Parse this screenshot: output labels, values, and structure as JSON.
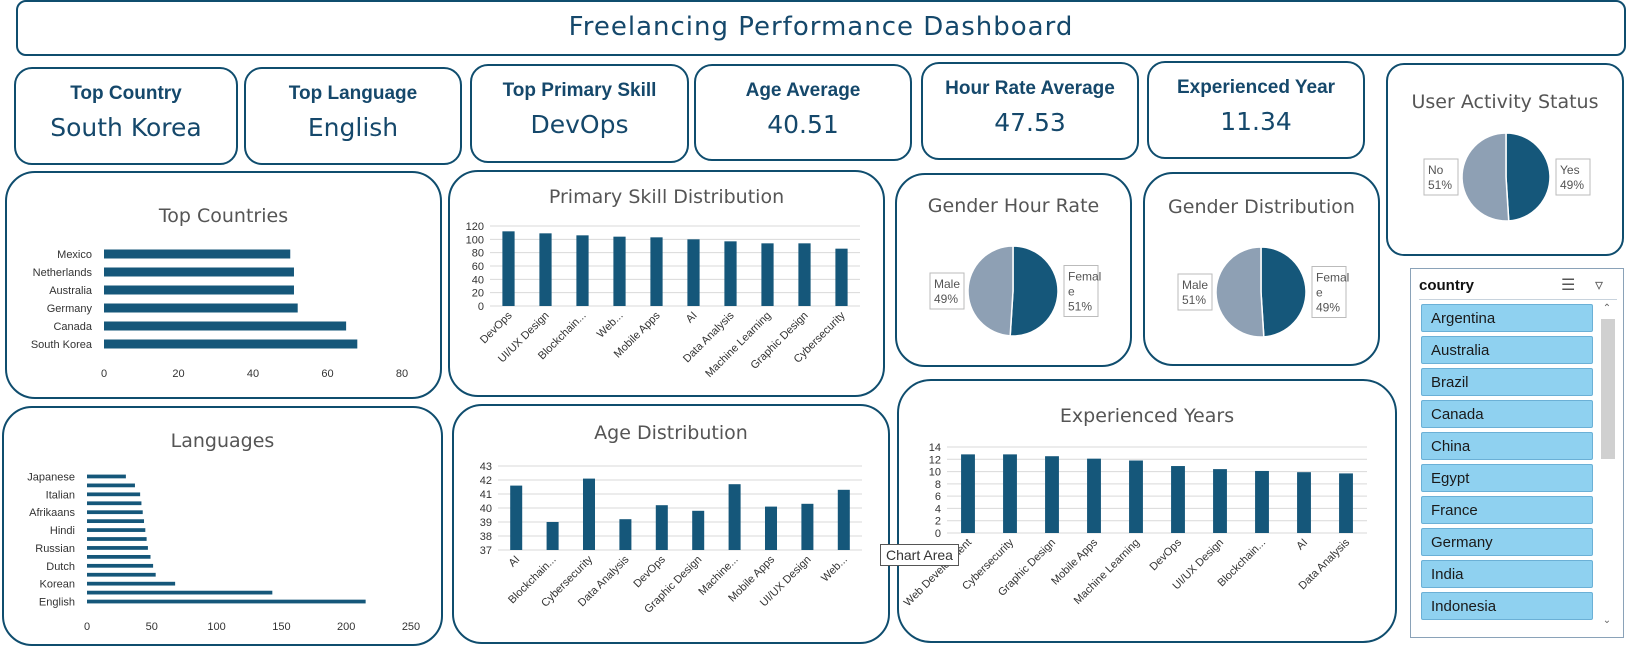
{
  "dashboard": {
    "title": "Freelancing Performance Dashboard"
  },
  "kpis": {
    "top_country": {
      "label": "Top Country",
      "value": "South Korea"
    },
    "top_language": {
      "label": "Top Language",
      "value": "English"
    },
    "top_skill": {
      "label": "Top Primary Skill",
      "value": "DevOps"
    },
    "age_avg": {
      "label": "Age Average",
      "value": "40.51"
    },
    "hour_rate_avg": {
      "label": "Hour Rate Average",
      "value": "47.53"
    },
    "exp_year": {
      "label": "Experienced Year",
      "value": "11.34"
    }
  },
  "colors": {
    "accent": "#15577a",
    "grey": "#8ea0b4",
    "border": "#0f4d6e"
  },
  "tooltip": "Chart Area",
  "slicer": {
    "title": "country",
    "items": [
      "Argentina",
      "Australia",
      "Brazil",
      "Canada",
      "China",
      "Egypt",
      "France",
      "Germany",
      "India",
      "Indonesia"
    ]
  },
  "chart_data": [
    {
      "id": "top_countries",
      "type": "bar",
      "orientation": "horizontal",
      "title": "Top Countries",
      "categories": [
        "Mexico",
        "Netherlands",
        "Australia",
        "Germany",
        "Canada",
        "South Korea"
      ],
      "values": [
        50,
        51,
        51,
        52,
        65,
        68
      ],
      "xlim": [
        0,
        80
      ],
      "xticks": [
        "0",
        "20",
        "40",
        "60",
        "80"
      ]
    },
    {
      "id": "languages",
      "type": "bar",
      "orientation": "horizontal",
      "title": "Languages",
      "categories": [
        "Japanese",
        "",
        "Italian",
        "",
        "Afrikaans",
        "",
        "Hindi",
        "",
        "Russian",
        "",
        "Dutch",
        "",
        "Korean",
        "",
        "English"
      ],
      "values": [
        30,
        37,
        41,
        42,
        43,
        44,
        45,
        46,
        47,
        49,
        51,
        53,
        68,
        143,
        215
      ],
      "xlim": [
        0,
        250
      ],
      "xticks": [
        "0",
        "50",
        "100",
        "150",
        "200",
        "250"
      ]
    },
    {
      "id": "primary_skill",
      "type": "bar",
      "title": "Primary Skill Distribution",
      "categories": [
        "DevOps",
        "UI/UX Design",
        "Blockchain...",
        "Web...",
        "Mobile Apps",
        "AI",
        "Data Analysis",
        "Machine Learning",
        "Graphic Design",
        "Cybersecurity"
      ],
      "values": [
        112,
        109,
        106,
        104,
        103,
        100,
        97,
        94,
        94,
        86
      ],
      "ylim": [
        0,
        120
      ],
      "yticks": [
        "0",
        "20",
        "40",
        "60",
        "80",
        "100",
        "120"
      ]
    },
    {
      "id": "age_distribution",
      "type": "bar",
      "title": "Age Distribution",
      "categories": [
        "AI",
        "Blockchain...",
        "Cybersecurity",
        "Data Analysis",
        "DevOps",
        "Graphic Design",
        "Machine...",
        "Mobile Apps",
        "UI/UX Design",
        "Web..."
      ],
      "values": [
        41.6,
        39.0,
        42.1,
        39.2,
        40.2,
        39.8,
        41.7,
        40.1,
        40.3,
        41.3
      ],
      "ylim": [
        37,
        43
      ],
      "yticks": [
        "37",
        "38",
        "39",
        "40",
        "41",
        "42",
        "43"
      ]
    },
    {
      "id": "experienced_years",
      "type": "bar",
      "title": "Experienced Years",
      "categories": [
        "Web Development",
        "Cybersecurity",
        "Graphic Design",
        "Mobile Apps",
        "Machine Learning",
        "DevOps",
        "UI/UX Design",
        "Blockchain...",
        "AI",
        "Data Analysis"
      ],
      "values": [
        12.8,
        12.8,
        12.5,
        12.1,
        11.8,
        10.9,
        10.4,
        10.1,
        9.9,
        9.7
      ],
      "ylim": [
        0,
        14
      ],
      "yticks": [
        "0",
        "2",
        "4",
        "6",
        "8",
        "10",
        "12",
        "14"
      ]
    },
    {
      "id": "gender_hour_rate",
      "type": "pie",
      "title": "Gender Hour Rate",
      "slices": [
        {
          "name": "Female",
          "label": "Femal e 51%",
          "value": 51
        },
        {
          "name": "Male",
          "label": "Male 49%",
          "value": 49
        }
      ]
    },
    {
      "id": "gender_distribution",
      "type": "pie",
      "title": "Gender Distribution",
      "slices": [
        {
          "name": "Female",
          "label": "Femal e 49%",
          "value": 49
        },
        {
          "name": "Male",
          "label": "Male 51%",
          "value": 51
        }
      ]
    },
    {
      "id": "user_activity",
      "type": "pie",
      "title": "User Activity Status",
      "slices": [
        {
          "name": "Yes",
          "label": "Yes 49%",
          "value": 49
        },
        {
          "name": "No",
          "label": "No 51%",
          "value": 51
        }
      ]
    }
  ]
}
